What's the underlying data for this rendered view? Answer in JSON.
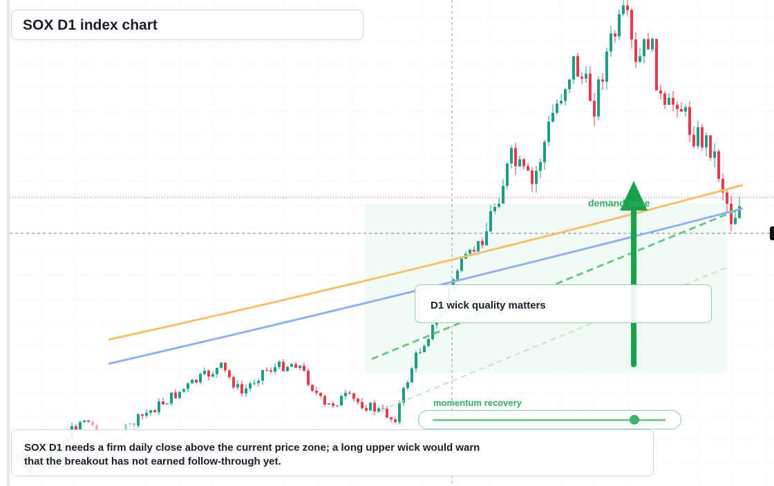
{
  "header": {
    "title": "SOX D1 index chart"
  },
  "chart": {
    "zone_label": "demand zone",
    "callout": "D1 wick quality matters",
    "slider_label": "momentum recovery"
  },
  "note": "SOX D1 needs a firm daily close above the current price zone; a long upper wick would warn that the breakout has not earned follow-through yet."
}
